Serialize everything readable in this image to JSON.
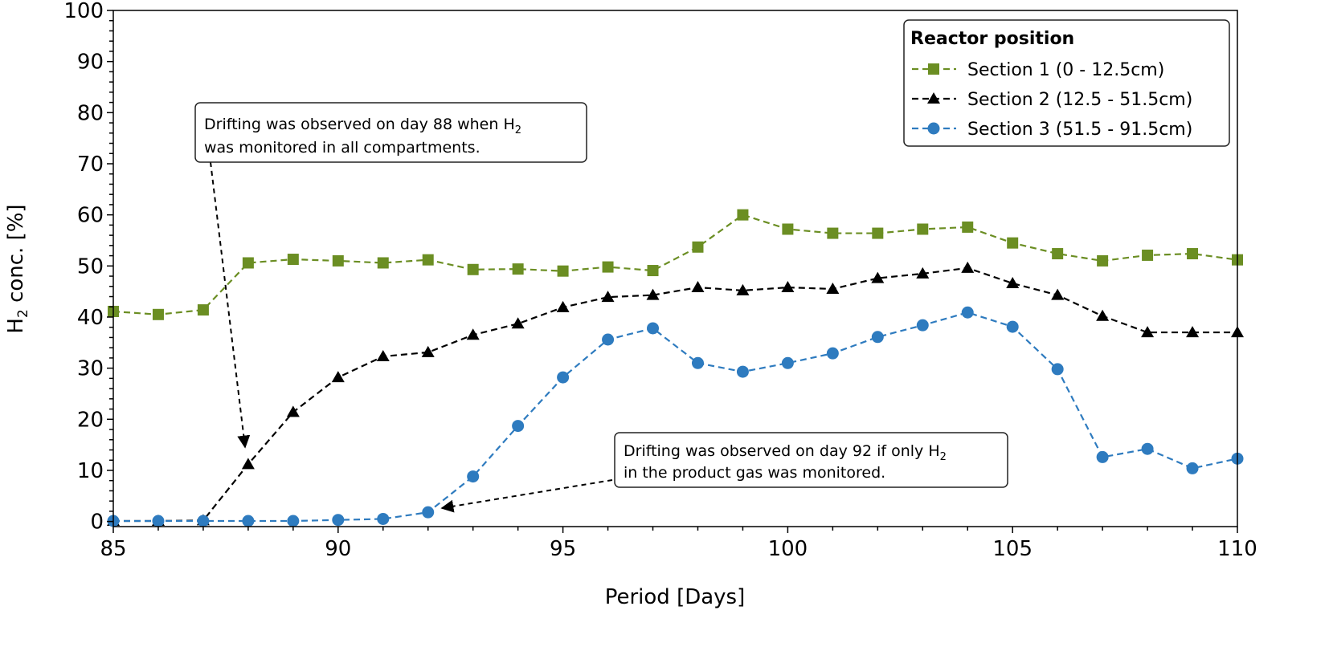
{
  "chart_data": {
    "type": "line",
    "xlabel": "Period [Days]",
    "ylabel_main": "H",
    "ylabel_sub": "2",
    "ylabel_rest": " conc. [%]",
    "xlim": [
      85,
      110
    ],
    "ylim": [
      -1,
      100
    ],
    "xticks": [
      85,
      90,
      95,
      100,
      105,
      110
    ],
    "yticks": [
      0,
      10,
      20,
      30,
      40,
      50,
      60,
      70,
      80,
      90,
      100
    ],
    "grid": false,
    "legend": {
      "title": "Reactor position",
      "placement": "top-right"
    },
    "x": [
      85,
      86,
      87,
      88,
      89,
      90,
      91,
      92,
      93,
      94,
      95,
      96,
      97,
      98,
      99,
      100,
      101,
      102,
      103,
      104,
      105,
      106,
      107,
      108,
      109,
      110
    ],
    "series": [
      {
        "name": "Section 1 (0 - 12.5cm)",
        "color": "#6b8e23",
        "marker": "square",
        "values": [
          41.1,
          40.5,
          41.4,
          50.6,
          51.3,
          51.0,
          50.6,
          51.2,
          49.3,
          49.4,
          49.0,
          49.8,
          49.1,
          53.7,
          60.0,
          57.2,
          56.4,
          56.4,
          57.2,
          57.6,
          54.5,
          52.4,
          51.0,
          52.1,
          52.4,
          51.2
        ]
      },
      {
        "name": "Section 2 (12.5 - 51.5cm)",
        "color": "#000000",
        "marker": "triangle",
        "values": [
          0.1,
          0.1,
          0.2,
          11.2,
          21.4,
          28.2,
          32.3,
          33.1,
          36.5,
          38.7,
          41.9,
          43.9,
          44.3,
          45.8,
          45.2,
          45.8,
          45.5,
          47.6,
          48.5,
          49.6,
          46.6,
          44.3,
          40.2,
          37.0,
          37.0,
          37.0
        ]
      },
      {
        "name": "Section 3 (51.5 - 91.5cm)",
        "color": "#2e7bbf",
        "marker": "circle",
        "values": [
          0.1,
          0.1,
          0.1,
          0.1,
          0.1,
          0.3,
          0.5,
          1.8,
          8.8,
          18.7,
          28.2,
          35.6,
          37.8,
          31.0,
          29.3,
          31.0,
          32.9,
          36.1,
          38.4,
          40.9,
          38.1,
          29.8,
          12.6,
          14.2,
          10.4,
          12.3
        ]
      }
    ],
    "annotations": [
      {
        "line1": "Drifting was observed on day 88 when H",
        "line1_sub": "2",
        "line2": "was monitored in all compartments.",
        "arrow_to": [
          88,
          14.5
        ]
      },
      {
        "line1": "Drifting was observed on day 92 if only H",
        "line1_sub": "2",
        "line2": "in the product gas was monitored.",
        "arrow_to": [
          92.3,
          2.5
        ]
      }
    ]
  }
}
